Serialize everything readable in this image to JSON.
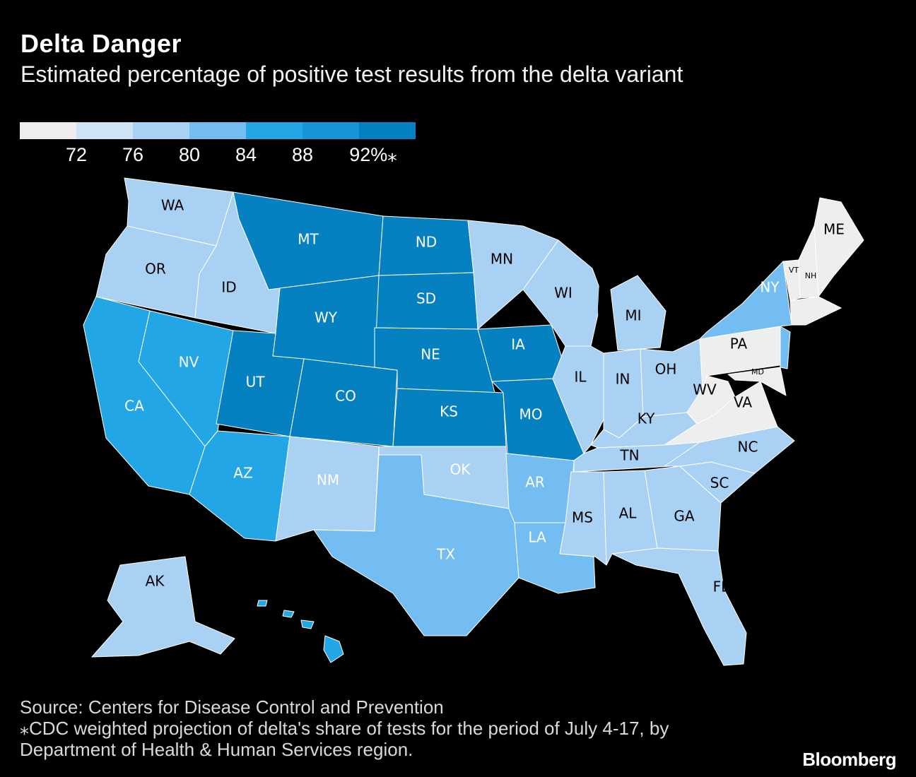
{
  "header": {
    "title": "Delta Danger",
    "subtitle": "Estimated percentage of positive test results from the delta variant"
  },
  "legend": {
    "colors": [
      "#eeeeee",
      "#cfe3f6",
      "#a9d1f4",
      "#74bdf2",
      "#23a6e5",
      "#1695d8",
      "#0580c0"
    ],
    "ticks": [
      "72",
      "76",
      "80",
      "84",
      "88",
      "92%⁎"
    ]
  },
  "palette": {
    "bin_72": "#eeeeee",
    "bin_76": "#cfe3f6",
    "bin_80": "#a9d1f4",
    "bin_84": "#74bdf2",
    "bin_88": "#23a6e5",
    "bin_92": "#0580c0"
  },
  "states": {
    "WA": "WA",
    "OR": "OR",
    "ID": "ID",
    "MT": "MT",
    "ND": "ND",
    "MN": "MN",
    "WY": "WY",
    "SD": "SD",
    "NV": "NV",
    "CA": "CA",
    "UT": "UT",
    "CO": "CO",
    "NE": "NE",
    "IA": "IA",
    "KS": "KS",
    "MO": "MO",
    "AZ": "AZ",
    "NM": "NM",
    "OK": "OK",
    "AR": "AR",
    "TX": "TX",
    "LA": "LA",
    "MS": "MS",
    "AL": "AL",
    "GA": "GA",
    "FL": "FL",
    "SC": "SC",
    "NC": "NC",
    "TN": "TN",
    "KY": "KY",
    "IL": "IL",
    "IN": "IN",
    "OH": "OH",
    "WI": "WI",
    "MI": "MI",
    "PA": "PA",
    "WV": "WV",
    "VA": "VA",
    "MD": "MD",
    "NY": "NY",
    "VT": "VT",
    "NH": "NH",
    "ME": "ME",
    "AK": "AK"
  },
  "footer": {
    "source": "Source: Centers for Disease Control and Prevention",
    "note_line1": "⁎CDC weighted projection of delta's share of tests for the period of July 4-17, by",
    "note_line2": "Department of Health & Human Services region.",
    "logo": "Bloomberg"
  }
}
